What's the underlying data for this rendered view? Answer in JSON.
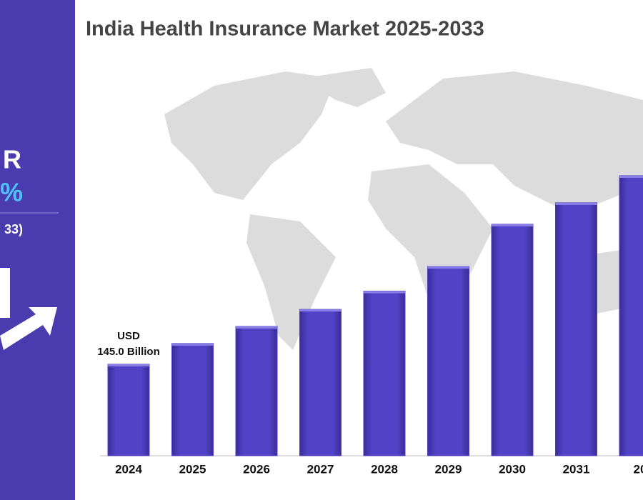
{
  "sidebar": {
    "line1": "R",
    "line2": "%",
    "line3": "33)"
  },
  "chart_data": {
    "type": "bar",
    "title": "India Health Insurance Market 2025-2033",
    "categories": [
      "2024",
      "2025",
      "2026",
      "2027",
      "2028",
      "2029",
      "2030",
      "2031",
      "20"
    ],
    "values": [
      145,
      178,
      205,
      232,
      261,
      300,
      367,
      401,
      444
    ],
    "value_labels": [
      "USD\n145.0 Billion",
      null,
      null,
      null,
      null,
      null,
      null,
      null,
      null
    ],
    "color": "#4f3fc0"
  }
}
